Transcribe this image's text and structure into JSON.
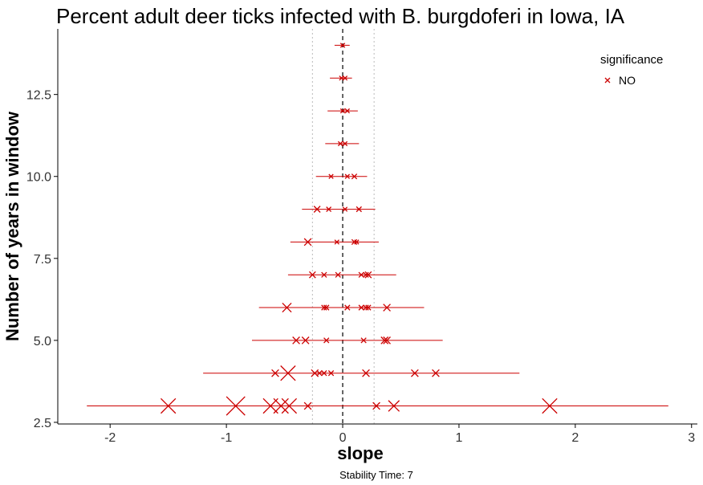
{
  "chart_data": {
    "type": "scatter",
    "title": "Percent adult deer ticks infected with B. burgdoferi in Iowa, IA",
    "xlabel": "slope",
    "ylabel": "Number of years in window",
    "caption": "Stability Time: 7",
    "xlim": [
      -2.45,
      3.05
    ],
    "ylim": [
      2.45,
      14.5
    ],
    "x_ticks": [
      -2,
      -1,
      0,
      1,
      2,
      3
    ],
    "x_tick_labels": [
      "-2",
      "-1",
      "0",
      "1",
      "2",
      "3"
    ],
    "y_ticks": [
      2.5,
      5.0,
      7.5,
      10.0,
      12.5
    ],
    "y_tick_labels": [
      "2.5",
      "5.0",
      "7.5",
      "10.0",
      "12.5"
    ],
    "grid": false,
    "reference_lines": {
      "zero": 0,
      "dotted": [
        -0.26,
        0.27
      ]
    },
    "legend": {
      "title": "significance",
      "entries": [
        "NO"
      ],
      "position": "top-right"
    },
    "colors": {
      "series": "#cc0000",
      "axis": "#000000",
      "reference": "#000000",
      "dotted": "#bbbbbb"
    },
    "series": [
      {
        "name": "NO",
        "windows": [
          {
            "y": 3,
            "range": [
              -2.2,
              2.8
            ],
            "points": [
              {
                "x": -1.5,
                "size": 3
              },
              {
                "x": -0.92,
                "size": 4
              },
              {
                "x": -0.62,
                "size": 3
              },
              {
                "x": -0.53,
                "size": 3
              },
              {
                "x": -0.46,
                "size": 3
              },
              {
                "x": -0.3,
                "size": 1
              },
              {
                "x": 0.29,
                "size": 1
              },
              {
                "x": 0.44,
                "size": 2
              },
              {
                "x": 1.78,
                "size": 3
              }
            ]
          },
          {
            "y": 4,
            "range": [
              -1.2,
              1.52
            ],
            "points": [
              {
                "x": -0.58,
                "size": 1
              },
              {
                "x": -0.47,
                "size": 3
              },
              {
                "x": -0.24,
                "size": 1
              },
              {
                "x": -0.2,
                "size": 0.5
              },
              {
                "x": -0.16,
                "size": 0.5
              },
              {
                "x": -0.1,
                "size": 0.5
              },
              {
                "x": 0.2,
                "size": 1
              },
              {
                "x": 0.62,
                "size": 1
              },
              {
                "x": 0.8,
                "size": 1
              }
            ]
          },
          {
            "y": 5,
            "range": [
              -0.78,
              0.86
            ],
            "points": [
              {
                "x": -0.4,
                "size": 1
              },
              {
                "x": -0.32,
                "size": 1
              },
              {
                "x": -0.14,
                "size": 0.5
              },
              {
                "x": 0.18,
                "size": 0.5
              },
              {
                "x": 0.36,
                "size": 1
              },
              {
                "x": 0.38,
                "size": 1
              }
            ]
          },
          {
            "y": 6,
            "range": [
              -0.72,
              0.7
            ],
            "points": [
              {
                "x": -0.48,
                "size": 1.5
              },
              {
                "x": -0.16,
                "size": 0.5
              },
              {
                "x": -0.14,
                "size": 0.5
              },
              {
                "x": 0.04,
                "size": 0.5
              },
              {
                "x": 0.16,
                "size": 0.5
              },
              {
                "x": 0.2,
                "size": 0.5
              },
              {
                "x": 0.22,
                "size": 0.5
              },
              {
                "x": 0.38,
                "size": 1
              }
            ]
          },
          {
            "y": 7,
            "range": [
              -0.47,
              0.46
            ],
            "points": [
              {
                "x": -0.26,
                "size": 0.8
              },
              {
                "x": -0.16,
                "size": 0.5
              },
              {
                "x": -0.04,
                "size": 0.5
              },
              {
                "x": 0.16,
                "size": 0.5
              },
              {
                "x": 0.2,
                "size": 0.5
              },
              {
                "x": 0.22,
                "size": 0.8
              }
            ]
          },
          {
            "y": 8,
            "range": [
              -0.45,
              0.31
            ],
            "points": [
              {
                "x": -0.3,
                "size": 1
              },
              {
                "x": -0.05,
                "size": 0.3
              },
              {
                "x": 0.1,
                "size": 0.5
              },
              {
                "x": 0.12,
                "size": 0.3
              }
            ]
          },
          {
            "y": 9,
            "range": [
              -0.35,
              0.28
            ],
            "points": [
              {
                "x": -0.22,
                "size": 0.8
              },
              {
                "x": -0.12,
                "size": 0.4
              },
              {
                "x": 0.02,
                "size": 0.3
              },
              {
                "x": 0.14,
                "size": 0.5
              }
            ]
          },
          {
            "y": 10,
            "range": [
              -0.23,
              0.21
            ],
            "points": [
              {
                "x": -0.1,
                "size": 0.3
              },
              {
                "x": 0.04,
                "size": 0.3
              },
              {
                "x": 0.1,
                "size": 0.5
              }
            ]
          },
          {
            "y": 11,
            "range": [
              -0.15,
              0.14
            ],
            "points": [
              {
                "x": -0.02,
                "size": 0.3
              },
              {
                "x": 0.02,
                "size": 0.3
              }
            ]
          },
          {
            "y": 12,
            "range": [
              -0.13,
              0.13
            ],
            "points": [
              {
                "x": 0,
                "size": 0.3
              },
              {
                "x": 0.04,
                "size": 0.3
              }
            ]
          },
          {
            "y": 13,
            "range": [
              -0.11,
              0.08
            ],
            "points": [
              {
                "x": -0.01,
                "size": 0.3
              },
              {
                "x": 0.02,
                "size": 0.3
              }
            ]
          },
          {
            "y": 14,
            "range": [
              -0.07,
              0.06
            ],
            "points": [
              {
                "x": 0,
                "size": 0.3
              }
            ]
          }
        ]
      }
    ]
  }
}
